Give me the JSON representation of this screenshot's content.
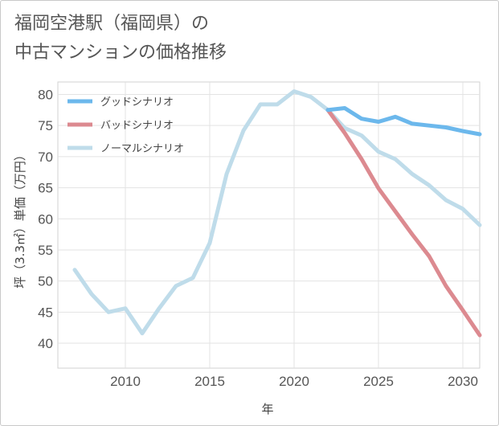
{
  "title_line1": "福岡空港駅（福岡県）の",
  "title_line2": "中古マンションの価格推移",
  "chart_data": {
    "type": "line",
    "xlabel": "年",
    "ylabel": "坪（3.3㎡）単価（万円）",
    "xlim": [
      2006,
      2031
    ],
    "ylim": [
      36,
      82
    ],
    "x_ticks": [
      2010,
      2015,
      2020,
      2025,
      2030
    ],
    "y_ticks": [
      40,
      45,
      50,
      55,
      60,
      65,
      70,
      75,
      80
    ],
    "series": [
      {
        "name": "グッドシナリオ",
        "color": "#6cb8ec",
        "x": [
          2022,
          2023,
          2024,
          2025,
          2026,
          2027,
          2028,
          2029,
          2030,
          2031
        ],
        "y": [
          77.5,
          77.8,
          76.1,
          75.6,
          76.4,
          75.3,
          75.0,
          74.7,
          74.1,
          73.6
        ]
      },
      {
        "name": "バッドシナリオ",
        "color": "#dc8a90",
        "x": [
          2022,
          2023,
          2024,
          2025,
          2026,
          2027,
          2028,
          2029,
          2030,
          2031
        ],
        "y": [
          77.5,
          73.8,
          69.6,
          64.9,
          61.2,
          57.5,
          54.0,
          49.2,
          45.3,
          41.3
        ]
      },
      {
        "name": "ノーマルシナリオ",
        "color": "#bfdcea",
        "x": [
          2007,
          2008,
          2009,
          2010,
          2011,
          2012,
          2013,
          2014,
          2015,
          2016,
          2017,
          2018,
          2019,
          2020,
          2021,
          2022,
          2023,
          2024,
          2025,
          2026,
          2027,
          2028,
          2029,
          2030,
          2031
        ],
        "y": [
          51.8,
          47.9,
          45.0,
          45.6,
          41.6,
          45.6,
          49.2,
          50.5,
          56.1,
          67.2,
          74.2,
          78.4,
          78.4,
          80.5,
          79.6,
          77.5,
          74.6,
          73.4,
          70.8,
          69.6,
          67.2,
          65.4,
          63.0,
          61.6,
          59.0
        ]
      }
    ],
    "legend_position": "top-left"
  }
}
